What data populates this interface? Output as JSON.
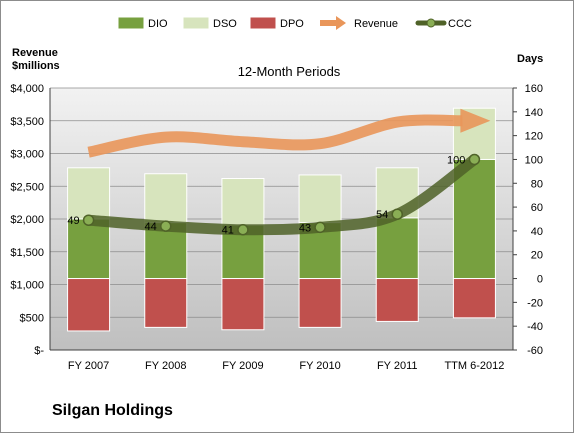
{
  "company": "Silgan Holdings",
  "chart_data": {
    "type": "bar",
    "title": "12-Month Periods",
    "left_axis_label": [
      "Revenue",
      "$millions"
    ],
    "right_axis_label": "Days",
    "categories": [
      "FY 2007",
      "FY 2008",
      "FY 2009",
      "FY 2010",
      "FY 2011",
      "TTM 6-2012"
    ],
    "stacked": true,
    "series": [
      {
        "name": "DIO",
        "axis": "right",
        "kind": "stacked-bar",
        "color": "#77a03f",
        "values": [
          50,
          47,
          45,
          47,
          51,
          100
        ]
      },
      {
        "name": "DSO",
        "axis": "right",
        "kind": "stacked-bar",
        "color": "#d7e4bd",
        "values": [
          43,
          41,
          39,
          40,
          42,
          43
        ]
      },
      {
        "name": "DPO",
        "axis": "right",
        "kind": "negative-bar",
        "color": "#c0504d",
        "values": [
          -44,
          -41,
          -43,
          -41,
          -36,
          -33
        ]
      },
      {
        "name": "Revenue",
        "axis": "left",
        "kind": "arrow-line",
        "color": "#e9965a",
        "values": [
          3020,
          3250,
          3180,
          3150,
          3480,
          3500
        ]
      },
      {
        "name": "CCC",
        "axis": "right",
        "kind": "line",
        "color": "#4f6228",
        "values": [
          49,
          44,
          41,
          43,
          54,
          100
        ]
      }
    ],
    "data_labels": [
      {
        "series": "CCC",
        "category": "FY 2007",
        "text": "49"
      },
      {
        "series": "CCC",
        "category": "FY 2008",
        "text": "44"
      },
      {
        "series": "CCC",
        "category": "FY 2009",
        "text": "41"
      },
      {
        "series": "CCC",
        "category": "FY 2010",
        "text": "43"
      },
      {
        "series": "CCC",
        "category": "FY 2011",
        "text": "54"
      },
      {
        "series": "CCC",
        "category": "TTM 6-2012",
        "text": "100"
      }
    ],
    "left_axis": {
      "min": 0,
      "max": 4000,
      "step": 500,
      "ticks": [
        "$-",
        "$500",
        "$1,000",
        "$1,500",
        "$2,000",
        "$2,500",
        "$3,000",
        "$3,500",
        "$4,000"
      ]
    },
    "right_axis": {
      "min": -60,
      "max": 160,
      "step": 20,
      "ticks": [
        "-60",
        "-40",
        "-20",
        "0",
        "20",
        "40",
        "60",
        "80",
        "100",
        "120",
        "140",
        "160"
      ]
    },
    "legend": {
      "position": "top",
      "items": [
        "DIO",
        "DSO",
        "DPO",
        "Revenue",
        "CCC"
      ]
    },
    "grid": true
  }
}
